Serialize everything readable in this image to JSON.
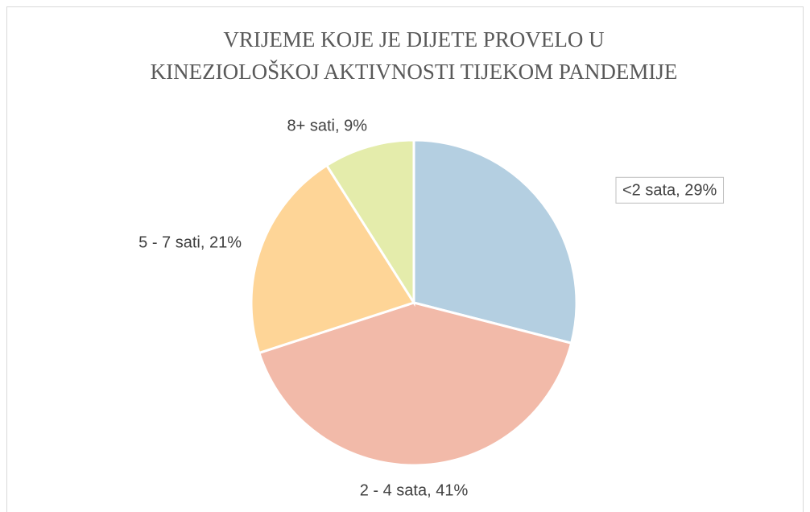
{
  "chart_data": {
    "type": "pie",
    "title": [
      "VRIJEME KOJE JE DIJETE PROVELO U",
      "KINEZIOLOŠKOJ AKTIVNOSTI TIJEKOM PANDEMIJE"
    ],
    "values": [
      29,
      41,
      21,
      9
    ],
    "value_labels": [
      "<2 sata, 29%",
      "2 - 4 sata, 41%",
      "5 - 7 sati, 21%",
      "8+ sati, 9%"
    ],
    "colors": [
      "#b4cfe1",
      "#f2baa9",
      "#fed597",
      "#e4ecab"
    ]
  }
}
